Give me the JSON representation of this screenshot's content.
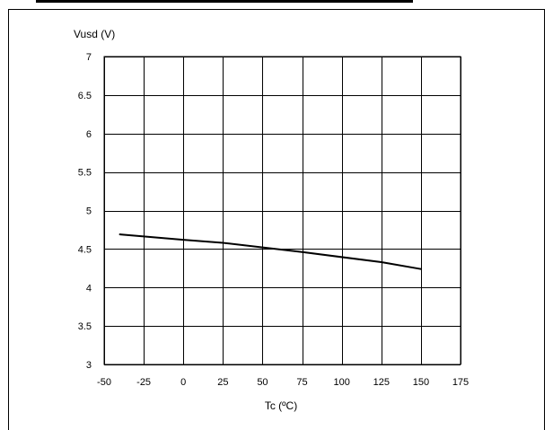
{
  "chart_data": {
    "type": "line",
    "title": "",
    "xlabel": "Tc (ºC)",
    "ylabel": "Vusd (V)",
    "xlim": [
      -50,
      175
    ],
    "ylim": [
      3,
      7
    ],
    "x_ticks": [
      -50,
      -25,
      0,
      25,
      50,
      75,
      100,
      125,
      150,
      175
    ],
    "y_ticks": [
      3,
      3.5,
      4,
      4.5,
      5,
      5.5,
      6,
      6.5,
      7
    ],
    "x_tick_labels": [
      "-50",
      "-25",
      "0",
      "25",
      "50",
      "75",
      "100",
      "125",
      "150",
      "175"
    ],
    "y_tick_labels": [
      "3",
      "3.5",
      "4",
      "4.5",
      "5",
      "5.5",
      "6",
      "6.5",
      "7"
    ],
    "grid": true,
    "legend": "none",
    "series": [
      {
        "x": [
          -40,
          0,
          25,
          75,
          125,
          150
        ],
        "values": [
          4.69,
          4.62,
          4.58,
          4.46,
          4.33,
          4.24
        ],
        "color": "#000000"
      }
    ]
  }
}
